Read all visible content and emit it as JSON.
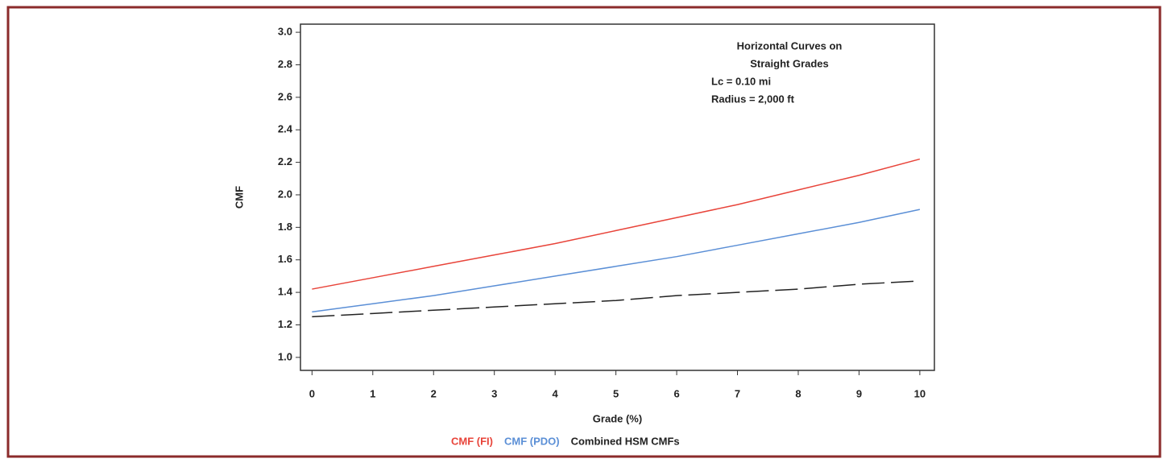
{
  "chart_data": {
    "type": "line",
    "x_label": "Grade (%)",
    "y_label": "CMF",
    "annotation": [
      "Horizontal Curves on",
      "Straight Grades",
      "Lc = 0.10 mi",
      "Radius = 2,000 ft"
    ],
    "x": [
      0,
      1,
      2,
      3,
      4,
      5,
      6,
      7,
      8,
      9,
      10
    ],
    "series": [
      {
        "name": "CMF (FI)",
        "color": "#e8443a",
        "line_style": "solid",
        "values": [
          1.42,
          1.49,
          1.56,
          1.63,
          1.7,
          1.78,
          1.86,
          1.94,
          2.03,
          2.12,
          2.22
        ]
      },
      {
        "name": "CMF (PDO)",
        "color": "#5b8fd6",
        "line_style": "solid",
        "values": [
          1.28,
          1.33,
          1.38,
          1.44,
          1.5,
          1.56,
          1.62,
          1.69,
          1.76,
          1.83,
          1.91
        ]
      },
      {
        "name": "Combined HSM CMFs",
        "color": "#222222",
        "line_style": "dashed",
        "values": [
          1.25,
          1.27,
          1.29,
          1.31,
          1.33,
          1.35,
          1.38,
          1.4,
          1.42,
          1.45,
          1.47
        ]
      }
    ],
    "xlim": [
      -0.19,
      10.24
    ],
    "ylim": [
      0.92,
      3.05
    ],
    "xticks": [
      0,
      1,
      2,
      3,
      4,
      5,
      6,
      7,
      8,
      9,
      10
    ],
    "yticks": [
      {
        "value": 1.0,
        "label": "1.0"
      },
      1.2,
      1.4,
      1.6,
      1.8,
      {
        "value": 2.0,
        "label": "2.0"
      },
      2.2,
      2.4,
      2.6,
      2.8,
      {
        "value": 3.0,
        "label": "3.0"
      }
    ],
    "grid": false,
    "legend_position": "bottom"
  }
}
